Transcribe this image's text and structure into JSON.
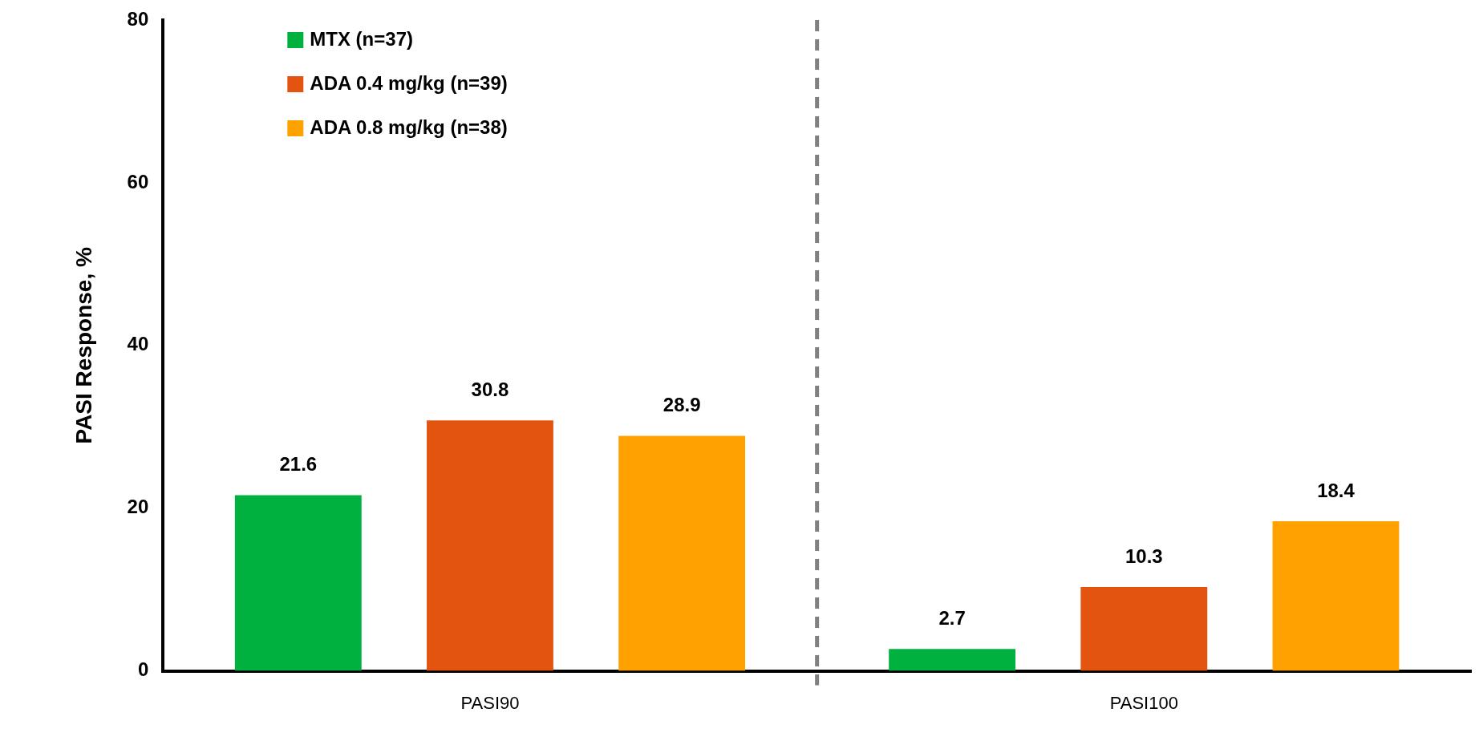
{
  "chart_data": {
    "type": "bar",
    "ylabel": "PASI Response, %",
    "categories": [
      "PASI90",
      "PASI100"
    ],
    "series": [
      {
        "name": "MTX (n=37)",
        "color": "#00b140",
        "values": [
          21.6,
          2.7
        ]
      },
      {
        "name": "ADA 0.4 mg/kg (n=39)",
        "color": "#e35411",
        "values": [
          30.8,
          10.3
        ]
      },
      {
        "name": "ADA 0.8 mg/kg (n=38)",
        "color": "#ffa100",
        "values": [
          28.9,
          18.4
        ]
      }
    ],
    "ylim": [
      0,
      80
    ],
    "yticks": [
      0,
      20,
      40,
      60,
      80
    ],
    "grid": false,
    "legend": "top left",
    "data_labels": true
  }
}
